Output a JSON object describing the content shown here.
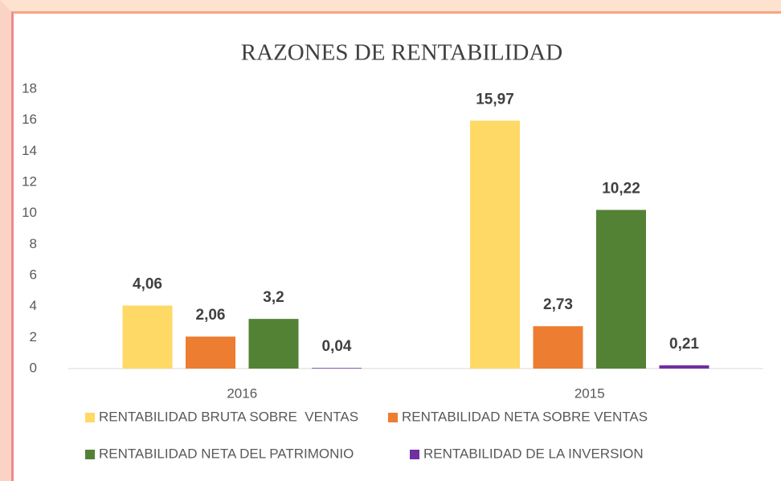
{
  "chart_data": {
    "type": "bar",
    "title": "RAZONES DE RENTABILIDAD",
    "categories": [
      "2016",
      "2015"
    ],
    "series": [
      {
        "name": "RENTABILIDAD BRUTA SOBRE  VENTAS",
        "color": "#ffd966",
        "values": [
          4.06,
          15.97
        ],
        "value_labels": [
          "4,06",
          "15,97"
        ]
      },
      {
        "name": "RENTABILIDAD NETA SOBRE VENTAS",
        "color": "#ed7d31",
        "values": [
          2.06,
          2.73
        ],
        "value_labels": [
          "2,06",
          "2,73"
        ]
      },
      {
        "name": "RENTABILIDAD NETA DEL PATRIMONIO",
        "color": "#548235",
        "values": [
          3.2,
          10.22
        ],
        "value_labels": [
          "3,2",
          "10,22"
        ]
      },
      {
        "name": "RENTABILIDAD DE LA INVERSION",
        "color": "#7030a0",
        "values": [
          0.04,
          0.21
        ],
        "value_labels": [
          "0,04",
          "0,21"
        ]
      }
    ],
    "ylim": [
      0,
      18
    ],
    "yticks": [
      0,
      2,
      4,
      6,
      8,
      10,
      12,
      14,
      16,
      18
    ],
    "grid": false,
    "legend": "bottom"
  }
}
